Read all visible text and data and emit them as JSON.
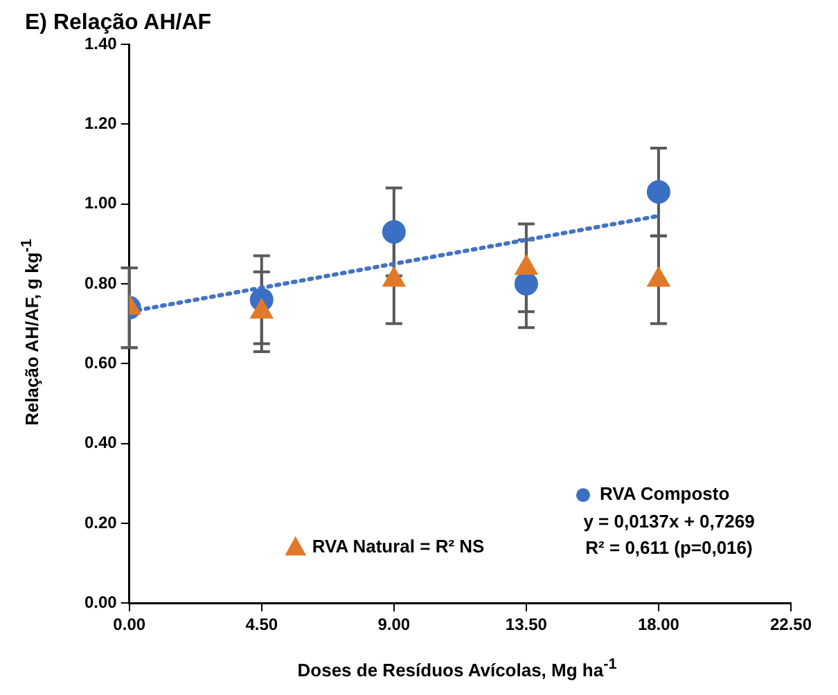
{
  "chart_data": {
    "type": "scatter",
    "title": "E) Relação AH/AF",
    "xlabel": "Doses de Resíduos Avícolas, Mg ha$^{-1}$",
    "ylabel": "Relação AH/AF, g kg$^{-1}$",
    "x": [
      0,
      4.5,
      9,
      13.5,
      18
    ],
    "series": [
      {
        "name": "RVA Composto",
        "color": "#3a6fc4",
        "marker": "circle",
        "values": [
          0.74,
          0.76,
          0.93,
          0.8,
          1.03
        ],
        "errors": [
          0.1,
          0.11,
          0.11,
          0.11,
          0.11
        ]
      },
      {
        "name": "RVA Natural = R² NS",
        "color": "#e07a2a",
        "marker": "triangle",
        "values": [
          0.74,
          0.73,
          0.81,
          0.84,
          0.81
        ],
        "errors": [
          0.1,
          0.1,
          0.11,
          0.11,
          0.11
        ]
      },
      {
        "type": "line",
        "color": "#4472c4",
        "line_style": "dotted",
        "marker": "none",
        "x": [
          0,
          18
        ],
        "values": [
          0.73,
          0.97
        ]
      }
    ],
    "annotations": [
      "y = 0,0137x + 0,7269",
      "R² = 0,611 (p=0,016)"
    ],
    "xlim": [
      0,
      22.5
    ],
    "xticks": [
      {
        "value": 0,
        "label": "0.00"
      },
      {
        "value": 4.5,
        "label": "4.50"
      },
      {
        "value": 9,
        "label": "9.00"
      },
      {
        "value": 13.5,
        "label": "13.50"
      },
      {
        "value": 18,
        "label": "18.00"
      },
      {
        "value": 22.5,
        "label": "22.50"
      }
    ],
    "ylim": [
      0,
      1.4
    ],
    "yticks": [
      {
        "value": 0,
        "label": "0.00"
      },
      {
        "value": 0.2,
        "label": "0.20"
      },
      {
        "value": 0.4,
        "label": "0.40"
      },
      {
        "value": 0.6,
        "label": "0.60"
      },
      {
        "value": 0.8,
        "label": "0.80"
      },
      {
        "value": 1.0,
        "label": "1.00"
      },
      {
        "value": 1.2,
        "label": "1.20"
      },
      {
        "value": 1.4,
        "label": "1.40"
      }
    ],
    "grid": false,
    "legend": "bottom right"
  }
}
